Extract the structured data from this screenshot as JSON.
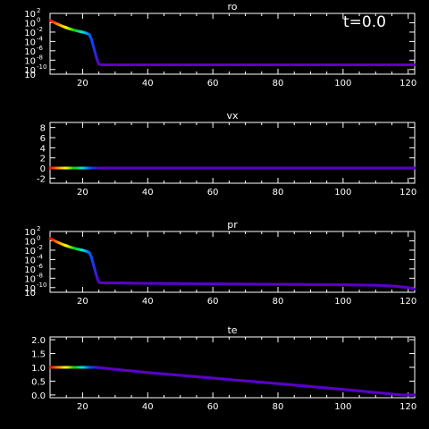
{
  "time_label": "t=0.0",
  "chart_data": [
    {
      "type": "line",
      "title": "ro",
      "y_scale": "log",
      "xlim": [
        10,
        122
      ],
      "ylim": [
        -11,
        2
      ],
      "x_ticks": [
        20,
        40,
        60,
        80,
        100,
        120
      ],
      "x_tick_labels": [
        "20",
        "40",
        "60",
        "80",
        "100",
        "120"
      ],
      "y_ticks": [
        2,
        0,
        -2,
        -4,
        -6,
        -8,
        -10,
        -11
      ],
      "y_tick_labels": [
        {
          "base": "10",
          "exp": "2"
        },
        {
          "base": "10",
          "exp": "0"
        },
        {
          "base": "10",
          "exp": "-2"
        },
        {
          "base": "10",
          "exp": "-4"
        },
        {
          "base": "10",
          "exp": "-6"
        },
        {
          "base": "10",
          "exp": "-8"
        },
        {
          "base": "10",
          "exp": "-10"
        },
        {
          "base": "10",
          "exp": ""
        }
      ],
      "x": [
        10,
        12,
        14,
        16,
        18,
        20,
        21,
        22,
        22.7,
        23.3,
        24,
        24.5,
        25,
        26,
        30,
        40,
        60,
        80,
        100,
        122
      ],
      "y": [
        0.5,
        -0.2,
        -0.8,
        -1.3,
        -1.7,
        -2.0,
        -2.2,
        -2.5,
        -3.5,
        -5.0,
        -6.8,
        -8.0,
        -8.9,
        -9.0,
        -9.0,
        -9.0,
        -9.0,
        -9.0,
        -9.0,
        -9.0
      ]
    },
    {
      "type": "line",
      "title": "vx",
      "y_scale": "linear",
      "xlim": [
        10,
        122
      ],
      "ylim": [
        -3,
        9
      ],
      "x_ticks": [
        20,
        40,
        60,
        80,
        100,
        120
      ],
      "x_tick_labels": [
        "20",
        "40",
        "60",
        "80",
        "100",
        "120"
      ],
      "y_ticks": [
        8,
        6,
        4,
        2,
        0,
        -2
      ],
      "y_tick_labels": [
        "8",
        "6",
        "4",
        "2",
        "0",
        "-2"
      ],
      "x": [
        10,
        24,
        40,
        60,
        80,
        100,
        122
      ],
      "y": [
        0,
        0,
        0,
        0,
        0,
        0,
        0
      ]
    },
    {
      "type": "line",
      "title": "pr",
      "y_scale": "log",
      "xlim": [
        10,
        122
      ],
      "ylim": [
        -11,
        2
      ],
      "x_ticks": [
        20,
        40,
        60,
        80,
        100,
        120
      ],
      "x_tick_labels": [
        "20",
        "40",
        "60",
        "80",
        "100",
        "120"
      ],
      "y_ticks": [
        2,
        0,
        -2,
        -4,
        -6,
        -8,
        -10,
        -11
      ],
      "y_tick_labels": [
        {
          "base": "10",
          "exp": "2"
        },
        {
          "base": "10",
          "exp": "0"
        },
        {
          "base": "10",
          "exp": "-2"
        },
        {
          "base": "10",
          "exp": "-4"
        },
        {
          "base": "10",
          "exp": "-6"
        },
        {
          "base": "10",
          "exp": "-8"
        },
        {
          "base": "10",
          "exp": "-10"
        },
        {
          "base": "10",
          "exp": ""
        }
      ],
      "x": [
        10,
        12,
        14,
        16,
        18,
        20,
        21,
        22,
        22.7,
        23.3,
        24,
        24.5,
        25,
        26,
        30,
        40,
        60,
        80,
        100,
        110,
        116,
        120,
        122
      ],
      "y": [
        0.5,
        -0.2,
        -0.8,
        -1.3,
        -1.7,
        -2.0,
        -2.2,
        -2.5,
        -3.5,
        -5.0,
        -6.8,
        -8.0,
        -8.9,
        -9.0,
        -9.0,
        -9.1,
        -9.2,
        -9.3,
        -9.4,
        -9.5,
        -9.7,
        -10.0,
        -10.3
      ]
    },
    {
      "type": "line",
      "title": "te",
      "y_scale": "linear",
      "xlim": [
        10,
        122
      ],
      "ylim": [
        -0.1,
        2.1
      ],
      "x_ticks": [
        20,
        40,
        60,
        80,
        100,
        120
      ],
      "x_tick_labels": [
        "20",
        "40",
        "60",
        "80",
        "100",
        "120"
      ],
      "y_ticks": [
        2.0,
        1.5,
        1.0,
        0.5,
        0.0
      ],
      "y_tick_labels": [
        "2.0",
        "1.5",
        "1.0",
        "0.5",
        "0.0"
      ],
      "x": [
        10,
        14,
        18,
        22,
        24,
        40,
        60,
        80,
        100,
        118,
        122
      ],
      "y": [
        1.0,
        1.0,
        1.0,
        1.0,
        1.0,
        0.81,
        0.61,
        0.41,
        0.2,
        0.0,
        0.0
      ]
    }
  ],
  "colors": {
    "background": "#000000",
    "axes": "#ffffff",
    "curve_tail": "#5a00c8"
  }
}
